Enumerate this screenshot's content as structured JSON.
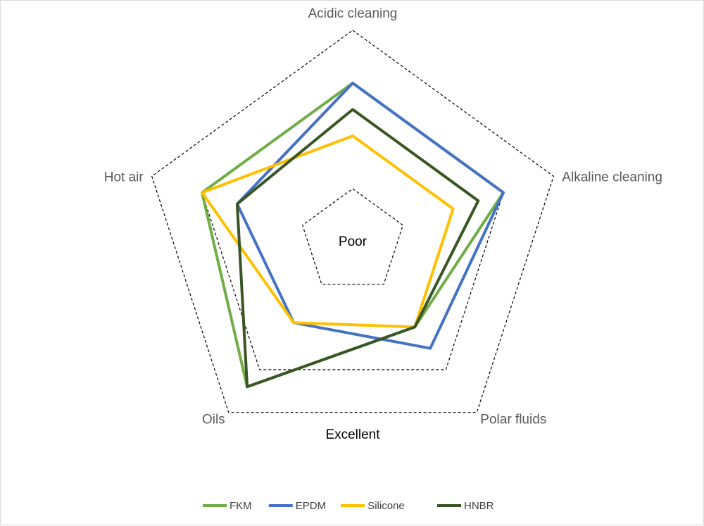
{
  "chart_data": {
    "type": "radar",
    "axes": [
      "Acidic cleaning",
      "Alkaline cleaning",
      "Polar  fluids",
      "Oils",
      "Hot air"
    ],
    "scale_labels": {
      "inner": "Poor",
      "outer": "Excellent"
    },
    "rlim": [
      0,
      4
    ],
    "rings": [
      1,
      3,
      4
    ],
    "series": [
      {
        "name": "FKM",
        "values": [
          3,
          3,
          2,
          3.4,
          3
        ],
        "color": "#70AD47"
      },
      {
        "name": "EPDM",
        "values": [
          3,
          3,
          2.5,
          1.9,
          2.3
        ],
        "color": "#4472C4"
      },
      {
        "name": "Silicone",
        "values": [
          2,
          2,
          2,
          1.9,
          3
        ],
        "color": "#FFC000"
      },
      {
        "name": "HNBR",
        "values": [
          2.5,
          2.5,
          2,
          3.4,
          2.3
        ],
        "color": "#375623"
      }
    ],
    "legend_position": "bottom"
  }
}
